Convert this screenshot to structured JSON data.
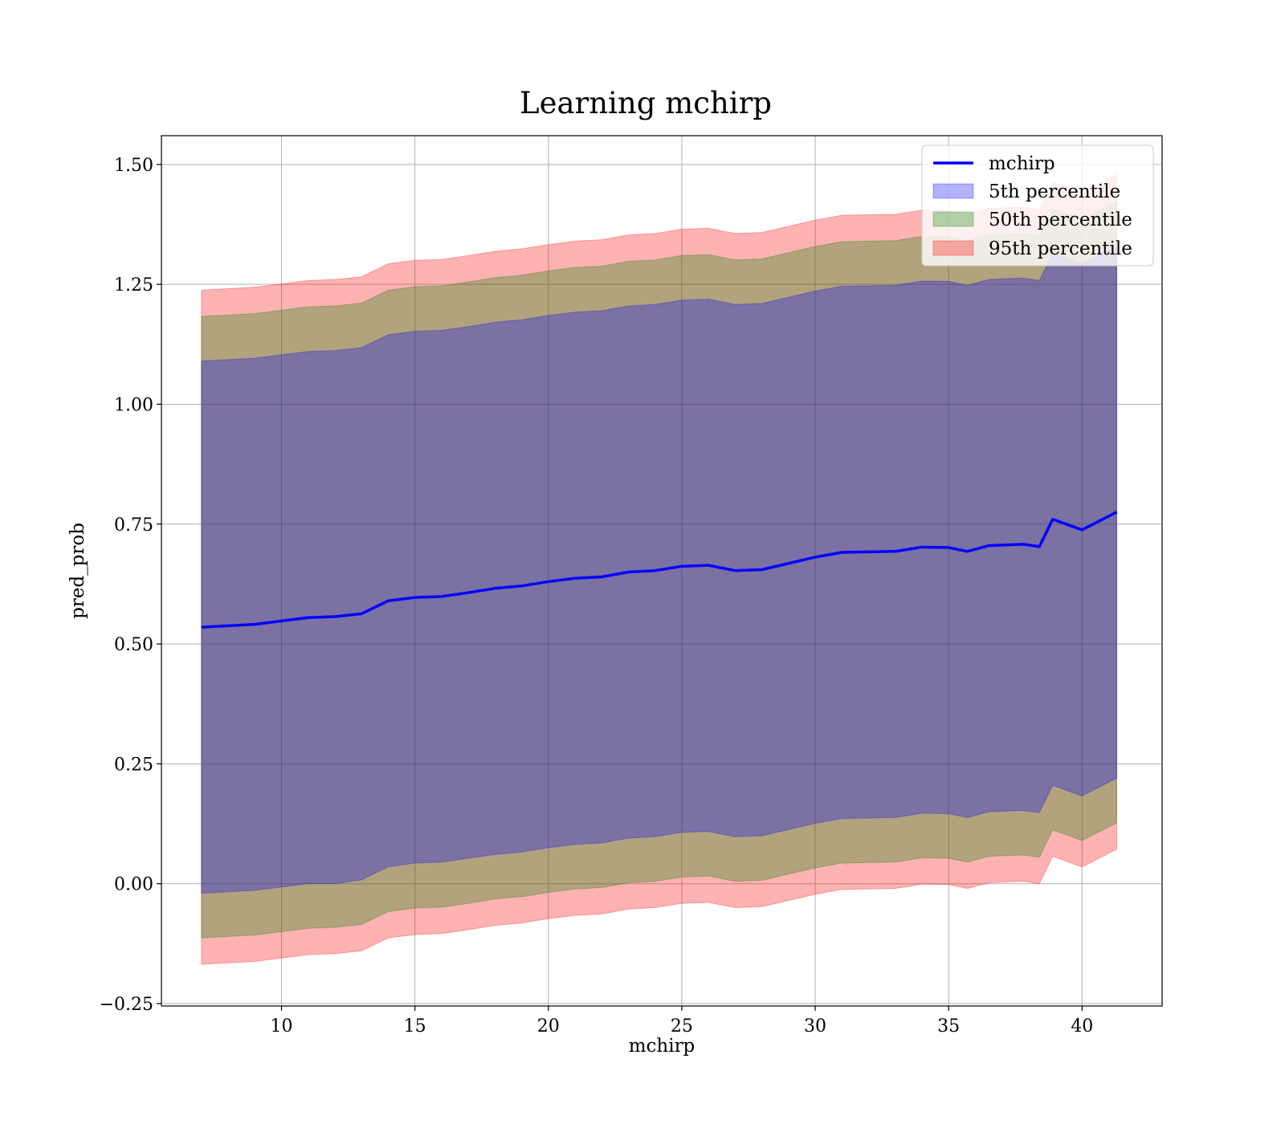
{
  "chart_data": {
    "type": "line",
    "title": "Learning mchirp",
    "xlabel": "mchirp",
    "ylabel": "pred_prob",
    "xlim": [
      5.5,
      43.0
    ],
    "ylim": [
      -0.255,
      1.56
    ],
    "xticks": [
      10,
      15,
      20,
      25,
      30,
      35,
      40
    ],
    "yticks": [
      -0.25,
      0.0,
      0.25,
      0.5,
      0.75,
      1.0,
      1.25,
      1.5
    ],
    "xtick_labels": [
      "10",
      "15",
      "20",
      "25",
      "30",
      "35",
      "40"
    ],
    "ytick_labels": [
      "−0.25",
      "0.00",
      "0.25",
      "0.50",
      "0.75",
      "1.00",
      "1.25",
      "1.50"
    ],
    "grid": true,
    "legend_position": "top-right",
    "x": [
      7.0,
      9.0,
      11.0,
      12.0,
      13.0,
      14.0,
      15.0,
      16.0,
      17.0,
      18.0,
      19.0,
      20.0,
      21.0,
      22.0,
      23.0,
      24.0,
      25.0,
      26.0,
      27.0,
      28.0,
      29.0,
      30.0,
      31.0,
      32.0,
      33.0,
      34.0,
      35.0,
      35.7,
      36.5,
      37.8,
      38.4,
      38.9,
      40.0,
      41.3
    ],
    "series": [
      {
        "name": "mchirp",
        "kind": "line",
        "color": "#0000ff",
        "values": [
          0.535,
          0.541,
          0.555,
          0.557,
          0.563,
          0.59,
          0.597,
          0.599,
          0.607,
          0.616,
          0.621,
          0.63,
          0.637,
          0.64,
          0.65,
          0.653,
          0.662,
          0.664,
          0.653,
          0.655,
          0.668,
          0.681,
          0.691,
          0.692,
          0.693,
          0.702,
          0.701,
          0.693,
          0.705,
          0.708,
          0.703,
          0.76,
          0.738,
          0.775
        ]
      },
      {
        "name": "5th percentile",
        "kind": "band",
        "color": "#0000ff",
        "lower": [
          -0.02,
          -0.014,
          0.0,
          0.0,
          0.008,
          0.035,
          0.043,
          0.045,
          0.053,
          0.061,
          0.066,
          0.075,
          0.082,
          0.085,
          0.095,
          0.098,
          0.107,
          0.109,
          0.098,
          0.1,
          0.113,
          0.126,
          0.136,
          0.137,
          0.138,
          0.147,
          0.146,
          0.138,
          0.15,
          0.153,
          0.148,
          0.205,
          0.183,
          0.22
        ],
        "upper": [
          1.09,
          1.096,
          1.11,
          1.112,
          1.118,
          1.145,
          1.152,
          1.154,
          1.162,
          1.171,
          1.176,
          1.185,
          1.192,
          1.195,
          1.205,
          1.208,
          1.217,
          1.219,
          1.208,
          1.21,
          1.223,
          1.236,
          1.246,
          1.247,
          1.248,
          1.257,
          1.256,
          1.248,
          1.26,
          1.263,
          1.258,
          1.315,
          1.293,
          1.33
        ]
      },
      {
        "name": "50th percentile",
        "kind": "band",
        "color": "#008000",
        "lower": [
          -0.113,
          -0.107,
          -0.093,
          -0.091,
          -0.085,
          -0.058,
          -0.051,
          -0.049,
          -0.041,
          -0.032,
          -0.027,
          -0.018,
          -0.011,
          -0.008,
          0.002,
          0.005,
          0.014,
          0.016,
          0.005,
          0.007,
          0.02,
          0.033,
          0.043,
          0.044,
          0.045,
          0.054,
          0.053,
          0.045,
          0.057,
          0.06,
          0.055,
          0.112,
          0.09,
          0.127
        ],
        "upper": [
          1.183,
          1.189,
          1.203,
          1.205,
          1.211,
          1.238,
          1.245,
          1.247,
          1.255,
          1.264,
          1.269,
          1.278,
          1.285,
          1.288,
          1.298,
          1.301,
          1.31,
          1.312,
          1.301,
          1.303,
          1.316,
          1.329,
          1.339,
          1.34,
          1.341,
          1.35,
          1.349,
          1.341,
          1.353,
          1.356,
          1.351,
          1.408,
          1.386,
          1.423
        ]
      },
      {
        "name": "95th percentile",
        "kind": "band",
        "color": "#ff0000",
        "lower": [
          -0.168,
          -0.162,
          -0.148,
          -0.146,
          -0.14,
          -0.113,
          -0.106,
          -0.104,
          -0.096,
          -0.087,
          -0.082,
          -0.073,
          -0.066,
          -0.063,
          -0.053,
          -0.05,
          -0.041,
          -0.039,
          -0.05,
          -0.048,
          -0.035,
          -0.022,
          -0.012,
          -0.011,
          -0.01,
          -0.001,
          -0.002,
          -0.01,
          0.002,
          0.005,
          0.0,
          0.057,
          0.035,
          0.072
        ],
        "upper": [
          1.238,
          1.244,
          1.258,
          1.26,
          1.266,
          1.293,
          1.3,
          1.302,
          1.31,
          1.319,
          1.324,
          1.333,
          1.34,
          1.343,
          1.353,
          1.356,
          1.365,
          1.367,
          1.356,
          1.358,
          1.371,
          1.384,
          1.394,
          1.395,
          1.396,
          1.405,
          1.404,
          1.396,
          1.408,
          1.411,
          1.406,
          1.463,
          1.441,
          1.478
        ]
      }
    ]
  }
}
